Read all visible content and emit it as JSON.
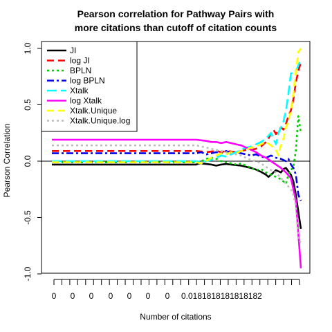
{
  "chart_data": {
    "type": "line",
    "title": [
      "Pearson correlation for Pathway Pairs with",
      "more citations than cutoff of citation counts"
    ],
    "xlabel": "Number of citations",
    "ylabel": "Pearson Correlation",
    "ylim": [
      -1.0,
      1.0
    ],
    "yticks": [
      "-1.0",
      "-0.5",
      "0.0",
      "0.5",
      "1.0"
    ],
    "xtick_labels": [
      "0",
      "0",
      "0",
      "0",
      "0",
      "0",
      "0",
      "0.0181818181818182"
    ],
    "legend_position": "top-left",
    "hline": 0,
    "series": [
      {
        "name": "JI",
        "color": "#000000",
        "dash": "solid",
        "width": 2.6,
        "points": [
          [
            0,
            -0.03
          ],
          [
            0.58,
            -0.03
          ],
          [
            0.59,
            -0.02
          ],
          [
            0.6,
            -0.02
          ],
          [
            0.62,
            -0.025
          ],
          [
            0.64,
            -0.03
          ],
          [
            0.66,
            -0.04
          ],
          [
            0.68,
            -0.03
          ],
          [
            0.7,
            -0.025
          ],
          [
            0.72,
            -0.03
          ],
          [
            0.74,
            -0.035
          ],
          [
            0.76,
            -0.04
          ],
          [
            0.78,
            -0.05
          ],
          [
            0.8,
            -0.06
          ],
          [
            0.82,
            -0.075
          ],
          [
            0.84,
            -0.095
          ],
          [
            0.86,
            -0.12
          ],
          [
            0.87,
            -0.14
          ],
          [
            0.88,
            -0.12
          ],
          [
            0.89,
            -0.1
          ],
          [
            0.9,
            -0.08
          ],
          [
            0.91,
            -0.09
          ],
          [
            0.92,
            -0.1
          ],
          [
            0.93,
            -0.07
          ],
          [
            0.94,
            -0.06
          ],
          [
            0.95,
            -0.09
          ],
          [
            0.96,
            -0.12
          ],
          [
            0.97,
            -0.18
          ],
          [
            0.98,
            -0.3
          ],
          [
            0.99,
            -0.45
          ],
          [
            1.0,
            -0.6
          ]
        ]
      },
      {
        "name": "log JI",
        "color": "#ff0000",
        "dash": "dashed",
        "width": 2.6,
        "points": [
          [
            0,
            0.09
          ],
          [
            0.58,
            0.09
          ],
          [
            0.6,
            0.085
          ],
          [
            0.62,
            0.08
          ],
          [
            0.64,
            0.085
          ],
          [
            0.66,
            0.09
          ],
          [
            0.68,
            0.08
          ],
          [
            0.7,
            0.09
          ],
          [
            0.72,
            0.085
          ],
          [
            0.74,
            0.08
          ],
          [
            0.76,
            0.09
          ],
          [
            0.78,
            0.1
          ],
          [
            0.8,
            0.1
          ],
          [
            0.82,
            0.11
          ],
          [
            0.84,
            0.13
          ],
          [
            0.86,
            0.17
          ],
          [
            0.87,
            0.2
          ],
          [
            0.88,
            0.25
          ],
          [
            0.89,
            0.28
          ],
          [
            0.9,
            0.24
          ],
          [
            0.91,
            0.27
          ],
          [
            0.92,
            0.3
          ],
          [
            0.93,
            0.28
          ],
          [
            0.94,
            0.33
          ],
          [
            0.95,
            0.4
          ],
          [
            0.96,
            0.45
          ],
          [
            0.97,
            0.55
          ],
          [
            0.98,
            0.7
          ],
          [
            0.99,
            0.8
          ],
          [
            1.0,
            0.88
          ]
        ]
      },
      {
        "name": "BPLN",
        "color": "#00cd00",
        "dash": "dotted",
        "width": 2.6,
        "points": [
          [
            0,
            -0.01
          ],
          [
            0.58,
            -0.01
          ],
          [
            0.6,
            0.0
          ],
          [
            0.62,
            0.02
          ],
          [
            0.64,
            0.03
          ],
          [
            0.66,
            0.02
          ],
          [
            0.68,
            0.0
          ],
          [
            0.7,
            -0.01
          ],
          [
            0.72,
            -0.02
          ],
          [
            0.74,
            -0.03
          ],
          [
            0.76,
            -0.02
          ],
          [
            0.78,
            -0.04
          ],
          [
            0.8,
            -0.06
          ],
          [
            0.82,
            -0.08
          ],
          [
            0.84,
            -0.07
          ],
          [
            0.86,
            -0.1
          ],
          [
            0.88,
            -0.12
          ],
          [
            0.9,
            -0.14
          ],
          [
            0.92,
            -0.16
          ],
          [
            0.94,
            -0.2
          ],
          [
            0.95,
            -0.12
          ],
          [
            0.96,
            -0.08
          ],
          [
            0.97,
            -0.05
          ],
          [
            0.98,
            0.1
          ],
          [
            0.99,
            0.4
          ],
          [
            1.0,
            0.25
          ]
        ]
      },
      {
        "name": "log BPLN",
        "color": "#0000ee",
        "dash": "dashdot",
        "width": 2.6,
        "points": [
          [
            0,
            0.07
          ],
          [
            0.58,
            0.07
          ],
          [
            0.6,
            0.08
          ],
          [
            0.62,
            0.06
          ],
          [
            0.64,
            0.07
          ],
          [
            0.66,
            0.08
          ],
          [
            0.68,
            0.07
          ],
          [
            0.7,
            0.09
          ],
          [
            0.72,
            0.07
          ],
          [
            0.74,
            0.08
          ],
          [
            0.76,
            0.07
          ],
          [
            0.78,
            0.06
          ],
          [
            0.8,
            0.05
          ],
          [
            0.82,
            0.06
          ],
          [
            0.84,
            0.04
          ],
          [
            0.86,
            0.03
          ],
          [
            0.88,
            0.05
          ],
          [
            0.9,
            0.03
          ],
          [
            0.92,
            0.02
          ],
          [
            0.94,
            0.0
          ],
          [
            0.95,
            0.02
          ],
          [
            0.96,
            -0.03
          ],
          [
            0.97,
            -0.06
          ],
          [
            0.98,
            -0.12
          ],
          [
            0.99,
            -0.3
          ],
          [
            1.0,
            -0.35
          ]
        ]
      },
      {
        "name": "Xtalk",
        "color": "#00ffff",
        "dash": "longdash",
        "width": 2.6,
        "points": [
          [
            0,
            0.0
          ],
          [
            0.58,
            0.0
          ],
          [
            0.6,
            -0.01
          ],
          [
            0.62,
            0.0
          ],
          [
            0.64,
            0.01
          ],
          [
            0.66,
            0.03
          ],
          [
            0.68,
            0.05
          ],
          [
            0.7,
            0.04
          ],
          [
            0.72,
            0.06
          ],
          [
            0.74,
            0.08
          ],
          [
            0.76,
            0.1
          ],
          [
            0.78,
            0.12
          ],
          [
            0.8,
            0.13
          ],
          [
            0.82,
            0.15
          ],
          [
            0.84,
            0.17
          ],
          [
            0.86,
            0.2
          ],
          [
            0.88,
            0.25
          ],
          [
            0.89,
            0.2
          ],
          [
            0.9,
            0.15
          ],
          [
            0.91,
            0.25
          ],
          [
            0.92,
            0.3
          ],
          [
            0.93,
            0.35
          ],
          [
            0.94,
            0.45
          ],
          [
            0.95,
            0.6
          ],
          [
            0.96,
            0.78
          ],
          [
            0.97,
            0.78
          ],
          [
            0.98,
            0.8
          ],
          [
            0.99,
            0.85
          ],
          [
            1.0,
            0.9
          ]
        ]
      },
      {
        "name": "log Xtalk",
        "color": "#ff00ff",
        "dash": "solid",
        "width": 2.6,
        "points": [
          [
            0,
            0.19
          ],
          [
            0.58,
            0.19
          ],
          [
            0.6,
            0.185
          ],
          [
            0.62,
            0.18
          ],
          [
            0.64,
            0.17
          ],
          [
            0.66,
            0.17
          ],
          [
            0.68,
            0.16
          ],
          [
            0.7,
            0.17
          ],
          [
            0.72,
            0.16
          ],
          [
            0.74,
            0.15
          ],
          [
            0.76,
            0.14
          ],
          [
            0.78,
            0.12
          ],
          [
            0.8,
            0.1
          ],
          [
            0.82,
            0.08
          ],
          [
            0.84,
            0.05
          ],
          [
            0.86,
            0.03
          ],
          [
            0.88,
            0.0
          ],
          [
            0.9,
            -0.03
          ],
          [
            0.92,
            -0.06
          ],
          [
            0.94,
            -0.1
          ],
          [
            0.96,
            -0.15
          ],
          [
            0.97,
            -0.25
          ],
          [
            0.98,
            -0.35
          ],
          [
            0.99,
            -0.65
          ],
          [
            1.0,
            -0.95
          ]
        ]
      },
      {
        "name": "Xtalk.Unique",
        "color": "#ffff00",
        "dash": "dashed",
        "width": 2.6,
        "points": [
          [
            0,
            -0.01
          ],
          [
            0.58,
            -0.01
          ],
          [
            0.6,
            -0.02
          ],
          [
            0.62,
            0.0
          ],
          [
            0.64,
            0.03
          ],
          [
            0.66,
            0.05
          ],
          [
            0.68,
            0.07
          ],
          [
            0.7,
            0.06
          ],
          [
            0.72,
            0.08
          ],
          [
            0.74,
            0.07
          ],
          [
            0.76,
            0.09
          ],
          [
            0.78,
            0.1
          ],
          [
            0.8,
            0.12
          ],
          [
            0.82,
            0.13
          ],
          [
            0.84,
            0.15
          ],
          [
            0.86,
            0.17
          ],
          [
            0.88,
            0.14
          ],
          [
            0.9,
            0.1
          ],
          [
            0.91,
            0.05
          ],
          [
            0.92,
            0.15
          ],
          [
            0.93,
            0.2
          ],
          [
            0.94,
            0.3
          ],
          [
            0.95,
            0.35
          ],
          [
            0.96,
            0.45
          ],
          [
            0.97,
            0.6
          ],
          [
            0.98,
            0.8
          ],
          [
            0.99,
            0.97
          ],
          [
            1.0,
            1.0
          ]
        ]
      },
      {
        "name": "Xtalk.Unique.log",
        "color": "#bebebe",
        "dash": "dotted",
        "width": 2.6,
        "points": [
          [
            0,
            0.14
          ],
          [
            0.58,
            0.14
          ],
          [
            0.6,
            0.13
          ],
          [
            0.62,
            0.12
          ],
          [
            0.64,
            0.11
          ],
          [
            0.66,
            0.1
          ],
          [
            0.68,
            0.09
          ],
          [
            0.7,
            0.08
          ],
          [
            0.72,
            0.07
          ],
          [
            0.74,
            0.06
          ],
          [
            0.76,
            0.05
          ],
          [
            0.78,
            0.03
          ],
          [
            0.8,
            0.01
          ],
          [
            0.82,
            0.0
          ],
          [
            0.84,
            -0.02
          ],
          [
            0.86,
            -0.05
          ],
          [
            0.88,
            -0.08
          ],
          [
            0.9,
            -0.1
          ],
          [
            0.92,
            -0.15
          ],
          [
            0.94,
            -0.2
          ],
          [
            0.96,
            -0.25
          ],
          [
            0.97,
            -0.3
          ],
          [
            0.98,
            -0.4
          ],
          [
            0.99,
            -0.7
          ],
          [
            1.0,
            -0.72
          ]
        ]
      }
    ]
  }
}
